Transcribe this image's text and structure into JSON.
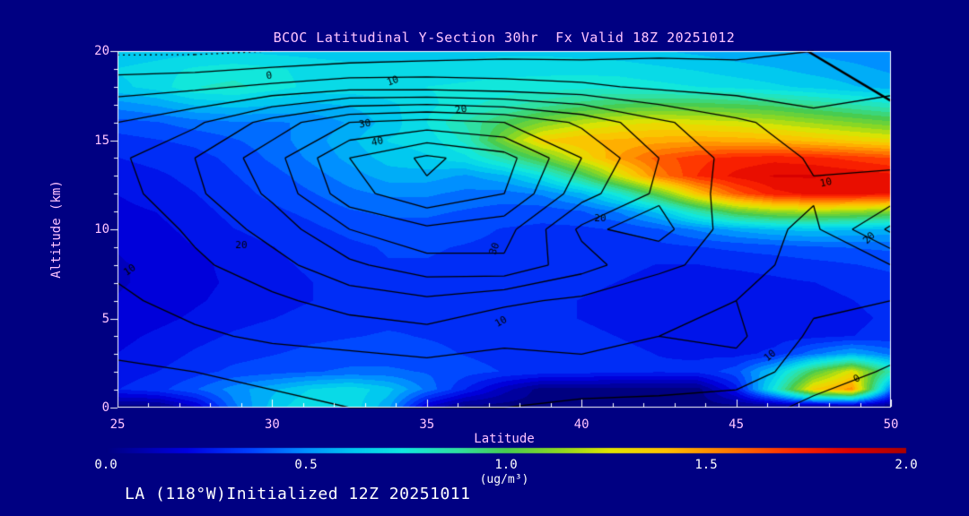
{
  "title": "BCOC Latitudinal Y-Section 30hr  Fx Valid 18Z 20251012",
  "annotation": "LA (118°W)Initialized 12Z 20251011",
  "colors": {
    "background": "#000082",
    "frame_and_ticks": "#ffffff",
    "title_axis_text": "#ffc4ff",
    "white_text": "#ffffff",
    "contour_lines": "#000000"
  },
  "axes": {
    "x_label": "Latitude",
    "y_label": "Altitude (km)",
    "x_ticks": [
      25,
      30,
      35,
      40,
      45,
      50
    ],
    "y_ticks": [
      0,
      5,
      10,
      15,
      20
    ],
    "x_range": [
      25,
      50
    ],
    "y_range": [
      0,
      20
    ],
    "x_minor_step": 1,
    "y_minor_step": 1
  },
  "colorbar": {
    "ticks": [
      "0.0",
      "0.5",
      "1.0",
      "1.5",
      "2.0"
    ],
    "unit": "(ug/m³)",
    "min": 0,
    "max": 2
  },
  "chart_data": {
    "type": "heatmap",
    "description": "Latitude-height cross section of BCOC concentration (filled, ug/m3) with overlaid black line contours of a second field (labeled 0-40). Fill grid rows run from 20 km down to 0 km.",
    "fill_units": "ug/m3",
    "fill_lat": [
      25,
      26.25,
      27.5,
      28.75,
      30,
      31.25,
      32.5,
      33.75,
      35,
      36.25,
      37.5,
      38.75,
      40,
      41.25,
      42.5,
      43.75,
      45,
      46.25,
      47.5,
      48.75,
      50
    ],
    "fill_alt": [
      20,
      19,
      18,
      17,
      16,
      15,
      14,
      13,
      12,
      11,
      10,
      9,
      8,
      7,
      6,
      5,
      4,
      3,
      2,
      1,
      0
    ],
    "fill_grid": [
      [
        0.6,
        0.62,
        0.64,
        0.65,
        0.64,
        0.63,
        0.62,
        0.62,
        0.62,
        0.63,
        0.64,
        0.64,
        0.63,
        0.62,
        0.6,
        0.58,
        0.56,
        0.54,
        0.52,
        0.5,
        0.48
      ],
      [
        0.66,
        0.69,
        0.73,
        0.75,
        0.73,
        0.7,
        0.68,
        0.68,
        0.68,
        0.69,
        0.7,
        0.7,
        0.7,
        0.69,
        0.67,
        0.65,
        0.62,
        0.6,
        0.57,
        0.55,
        0.52
      ],
      [
        0.64,
        0.68,
        0.78,
        0.8,
        0.75,
        0.7,
        0.69,
        0.7,
        0.72,
        0.73,
        0.74,
        0.75,
        0.76,
        0.76,
        0.74,
        0.72,
        0.7,
        0.67,
        0.64,
        0.6,
        0.57
      ],
      [
        0.5,
        0.54,
        0.6,
        0.62,
        0.6,
        0.58,
        0.6,
        0.64,
        0.7,
        0.76,
        0.82,
        0.88,
        0.94,
        0.98,
        1.0,
        1.0,
        0.98,
        0.95,
        0.9,
        0.85,
        0.8
      ],
      [
        0.38,
        0.4,
        0.44,
        0.46,
        0.46,
        0.48,
        0.54,
        0.62,
        0.72,
        0.85,
        0.98,
        1.1,
        1.2,
        1.26,
        1.28,
        1.26,
        1.24,
        1.2,
        1.15,
        1.1,
        1.05
      ],
      [
        0.32,
        0.34,
        0.36,
        0.4,
        0.44,
        0.5,
        0.58,
        0.66,
        0.68,
        0.8,
        1.1,
        1.35,
        1.4,
        1.42,
        1.44,
        1.45,
        1.44,
        1.42,
        1.38,
        1.34,
        1.3
      ],
      [
        0.28,
        0.3,
        0.32,
        0.36,
        0.42,
        0.48,
        0.55,
        0.62,
        0.65,
        0.7,
        0.85,
        1.05,
        1.28,
        1.48,
        1.62,
        1.7,
        1.74,
        1.76,
        1.74,
        1.7,
        1.66
      ],
      [
        0.25,
        0.27,
        0.3,
        0.34,
        0.38,
        0.44,
        0.5,
        0.56,
        0.56,
        0.52,
        0.58,
        0.72,
        0.95,
        1.25,
        1.55,
        1.72,
        1.8,
        1.85,
        1.85,
        1.83,
        1.8
      ],
      [
        0.22,
        0.25,
        0.28,
        0.32,
        0.36,
        0.4,
        0.45,
        0.48,
        0.48,
        0.45,
        0.44,
        0.48,
        0.58,
        0.78,
        1.05,
        1.38,
        1.62,
        1.76,
        1.8,
        1.8,
        1.78
      ],
      [
        0.2,
        0.22,
        0.26,
        0.3,
        0.33,
        0.36,
        0.4,
        0.42,
        0.42,
        0.4,
        0.38,
        0.37,
        0.4,
        0.48,
        0.62,
        0.85,
        1.05,
        1.15,
        1.18,
        1.15,
        1.1
      ],
      [
        0.18,
        0.2,
        0.24,
        0.28,
        0.3,
        0.33,
        0.36,
        0.38,
        0.38,
        0.36,
        0.34,
        0.33,
        0.33,
        0.35,
        0.4,
        0.48,
        0.55,
        0.6,
        0.62,
        0.6,
        0.58
      ],
      [
        0.16,
        0.18,
        0.22,
        0.26,
        0.28,
        0.3,
        0.33,
        0.35,
        0.35,
        0.34,
        0.33,
        0.32,
        0.31,
        0.3,
        0.32,
        0.34,
        0.36,
        0.38,
        0.4,
        0.41,
        0.42
      ],
      [
        0.15,
        0.17,
        0.2,
        0.24,
        0.27,
        0.29,
        0.32,
        0.34,
        0.34,
        0.33,
        0.32,
        0.31,
        0.3,
        0.29,
        0.28,
        0.28,
        0.29,
        0.3,
        0.32,
        0.34,
        0.36
      ],
      [
        0.15,
        0.17,
        0.2,
        0.23,
        0.26,
        0.28,
        0.31,
        0.33,
        0.33,
        0.32,
        0.31,
        0.3,
        0.29,
        0.28,
        0.27,
        0.26,
        0.26,
        0.27,
        0.28,
        0.3,
        0.32
      ],
      [
        0.16,
        0.18,
        0.21,
        0.24,
        0.26,
        0.28,
        0.3,
        0.32,
        0.32,
        0.31,
        0.3,
        0.29,
        0.28,
        0.27,
        0.26,
        0.25,
        0.25,
        0.25,
        0.26,
        0.28,
        0.3
      ],
      [
        0.18,
        0.2,
        0.23,
        0.26,
        0.28,
        0.3,
        0.32,
        0.33,
        0.33,
        0.32,
        0.3,
        0.29,
        0.28,
        0.27,
        0.26,
        0.25,
        0.24,
        0.24,
        0.25,
        0.27,
        0.29
      ],
      [
        0.2,
        0.23,
        0.26,
        0.29,
        0.31,
        0.33,
        0.34,
        0.35,
        0.34,
        0.33,
        0.31,
        0.3,
        0.29,
        0.28,
        0.27,
        0.26,
        0.25,
        0.25,
        0.26,
        0.28,
        0.3
      ],
      [
        0.22,
        0.25,
        0.29,
        0.32,
        0.34,
        0.36,
        0.37,
        0.37,
        0.36,
        0.34,
        0.32,
        0.31,
        0.3,
        0.29,
        0.28,
        0.27,
        0.26,
        0.3,
        0.45,
        0.55,
        0.45
      ],
      [
        0.25,
        0.28,
        0.32,
        0.36,
        0.38,
        0.4,
        0.42,
        0.42,
        0.4,
        0.37,
        0.34,
        0.32,
        0.31,
        0.3,
        0.29,
        0.3,
        0.38,
        0.62,
        1.0,
        1.28,
        0.85
      ],
      [
        0.28,
        0.32,
        0.4,
        0.5,
        0.58,
        0.66,
        0.7,
        0.62,
        0.45,
        0.28,
        0.12,
        0.0,
        0.0,
        0.0,
        0.0,
        0.0,
        0.25,
        0.75,
        1.35,
        1.5,
        0.45
      ],
      [
        0.0,
        0.0,
        0.15,
        0.45,
        0.62,
        0.72,
        0.7,
        0.55,
        0.15,
        0.0,
        0.0,
        0.0,
        0.0,
        0.0,
        0.0,
        0.0,
        0.0,
        0.0,
        0.0,
        0.0,
        0.0
      ]
    ],
    "contour_lat": [
      25,
      27.5,
      30,
      32.5,
      35,
      37.5,
      40,
      42.5,
      45,
      47.5,
      50
    ],
    "contour_alt": [
      20,
      18,
      16,
      14,
      12,
      10,
      8,
      6,
      4,
      2,
      0
    ],
    "contour_grid": [
      [
        -6,
        -6,
        -5,
        -4,
        -3,
        -2,
        -2,
        -1,
        -1,
        0,
        2
      ],
      [
        3,
        4,
        6,
        8,
        8,
        7,
        6,
        4,
        3,
        2,
        4
      ],
      [
        10,
        14,
        22,
        30,
        32,
        30,
        24,
        16,
        11,
        7,
        8
      ],
      [
        14,
        20,
        28,
        40,
        46,
        42,
        30,
        20,
        13,
        9.5,
        9
      ],
      [
        13,
        19,
        26,
        38,
        44,
        40,
        27,
        19,
        13,
        10.5,
        12
      ],
      [
        11,
        16,
        22,
        30,
        34,
        32,
        19,
        22,
        12,
        9,
        21
      ],
      [
        11,
        14,
        18,
        24,
        28,
        29,
        22,
        16,
        13,
        7,
        10
      ],
      [
        9,
        12,
        14,
        17,
        19,
        16,
        14,
        12,
        10,
        6,
        5
      ],
      [
        7,
        9,
        11,
        12,
        13,
        10.5,
        12,
        10,
        11,
        4,
        2
      ],
      [
        4,
        5,
        6,
        7,
        8,
        9,
        8,
        9,
        8,
        2,
        -0.5
      ],
      [
        2,
        3,
        4,
        5,
        5,
        5,
        4,
        3,
        2,
        -1,
        -2
      ]
    ],
    "contour_levels": [
      -5,
      0,
      5,
      10,
      15,
      20,
      25,
      30,
      35,
      40,
      45
    ],
    "contour_labels": [
      {
        "lat": 29.9,
        "alt": 18.6,
        "text": "0",
        "rot": -10
      },
      {
        "lat": 33.9,
        "alt": 18.3,
        "text": "10",
        "rot": -20
      },
      {
        "lat": 36.1,
        "alt": 16.7,
        "text": "20",
        "rot": -8
      },
      {
        "lat": 33.0,
        "alt": 15.9,
        "text": "30",
        "rot": -10
      },
      {
        "lat": 33.4,
        "alt": 14.9,
        "text": "40",
        "rot": -12
      },
      {
        "lat": 47.9,
        "alt": 12.6,
        "text": "10",
        "rot": -12
      },
      {
        "lat": 49.3,
        "alt": 9.5,
        "text": "20",
        "rot": -45
      },
      {
        "lat": 29.0,
        "alt": 9.1,
        "text": "20",
        "rot": 0
      },
      {
        "lat": 25.4,
        "alt": 7.7,
        "text": "10",
        "rot": -35
      },
      {
        "lat": 37.2,
        "alt": 8.9,
        "text": "30",
        "rot": -70
      },
      {
        "lat": 40.6,
        "alt": 10.6,
        "text": "20",
        "rot": 0
      },
      {
        "lat": 37.4,
        "alt": 4.8,
        "text": "10",
        "rot": -30
      },
      {
        "lat": 46.1,
        "alt": 2.9,
        "text": "10",
        "rot": -40
      },
      {
        "lat": 48.9,
        "alt": 1.6,
        "text": "0",
        "rot": -30
      }
    ],
    "bold_segment": {
      "from": [
        47.3,
        20
      ],
      "to": [
        50,
        17.2
      ]
    },
    "colormap": [
      [
        0.0,
        "#000080"
      ],
      [
        0.1,
        "#0000e0"
      ],
      [
        0.18,
        "#0040ff"
      ],
      [
        0.25,
        "#0090ff"
      ],
      [
        0.31,
        "#00c8f0"
      ],
      [
        0.37,
        "#10e8e0"
      ],
      [
        0.44,
        "#30e0a0"
      ],
      [
        0.5,
        "#48cc50"
      ],
      [
        0.57,
        "#90d820"
      ],
      [
        0.63,
        "#e0e400"
      ],
      [
        0.7,
        "#ffc000"
      ],
      [
        0.78,
        "#ff7800"
      ],
      [
        0.86,
        "#ff2800"
      ],
      [
        0.93,
        "#dd0000"
      ],
      [
        1.0,
        "#aa0000"
      ]
    ]
  }
}
